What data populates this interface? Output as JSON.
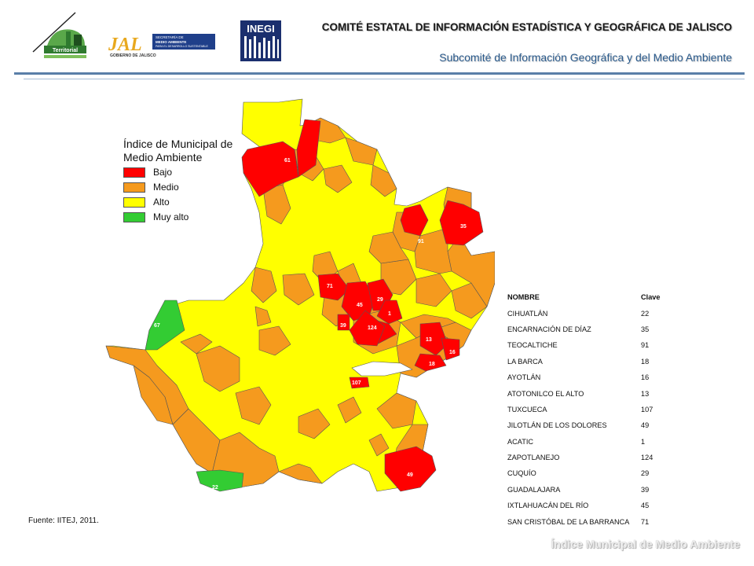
{
  "header": {
    "title": "COMITÉ ESTATAL DE INFORMACIÓN ESTADÍSTICA Y GEOGRÁFICA DE JALISCO",
    "subtitle": "Subcomité de Información Geográfica y del Medio Ambiente",
    "logo_iitej_text": "Territorial",
    "logo_jal_text": "JAL",
    "logo_jal_line1": "SECRETARÍA DE",
    "logo_jal_line2": "MEDIO AMBIENTE",
    "logo_jal_line3": "PARA EL DESARROLLO SUSTENTABLE",
    "logo_jal_gov": "GOBIERNO DE JALISCO",
    "logo_inegi_text": "INEGI"
  },
  "legend": {
    "title": "Índice de Municipal de Medio Ambiente",
    "items": [
      {
        "label": "Bajo",
        "color": "#ff0000"
      },
      {
        "label": "Medio",
        "color": "#f59a1e"
      },
      {
        "label": "Alto",
        "color": "#ffff00"
      },
      {
        "label": "Muy alto",
        "color": "#33cc33"
      }
    ]
  },
  "table": {
    "headers": [
      "NOMBRE",
      "Clave"
    ],
    "rows": [
      {
        "name": "CIHUATLÁN",
        "clave": "22"
      },
      {
        "name": "ENCARNACIÓN DE DÍAZ",
        "clave": "35"
      },
      {
        "name": "TEOCALTICHE",
        "clave": "91"
      },
      {
        "name": "LA BARCA",
        "clave": "18"
      },
      {
        "name": "AYOTLÁN",
        "clave": "16"
      },
      {
        "name": "ATOTONILCO EL ALTO",
        "clave": "13"
      },
      {
        "name": "TUXCUECA",
        "clave": "107"
      },
      {
        "name": "JILOTLÁN DE LOS DOLORES",
        "clave": "49"
      },
      {
        "name": "ACATIC",
        "clave": "1"
      },
      {
        "name": "ZAPOTLANEJO",
        "clave": "124"
      },
      {
        "name": "CUQUÍO",
        "clave": "29"
      },
      {
        "name": "GUADALAJARA",
        "clave": "39"
      },
      {
        "name": "IXTLAHUACÁN DEL RÍO",
        "clave": "45"
      },
      {
        "name": "SAN CRISTÓBAL DE LA BARRANCA",
        "clave": "71"
      }
    ]
  },
  "map_labels": {
    "l61": "61",
    "l91": "91",
    "l35": "35",
    "l71": "71",
    "l45": "45",
    "l29": "29",
    "l1": "1",
    "l39": "39",
    "l124": "124",
    "l13": "13",
    "l16": "16",
    "l18": "18",
    "l107": "107",
    "l49": "49",
    "l67": "67",
    "l22": "22"
  },
  "source": "Fuente: IITEJ,  2011.",
  "footer": "Índice Municipal de Medio Ambiente"
}
